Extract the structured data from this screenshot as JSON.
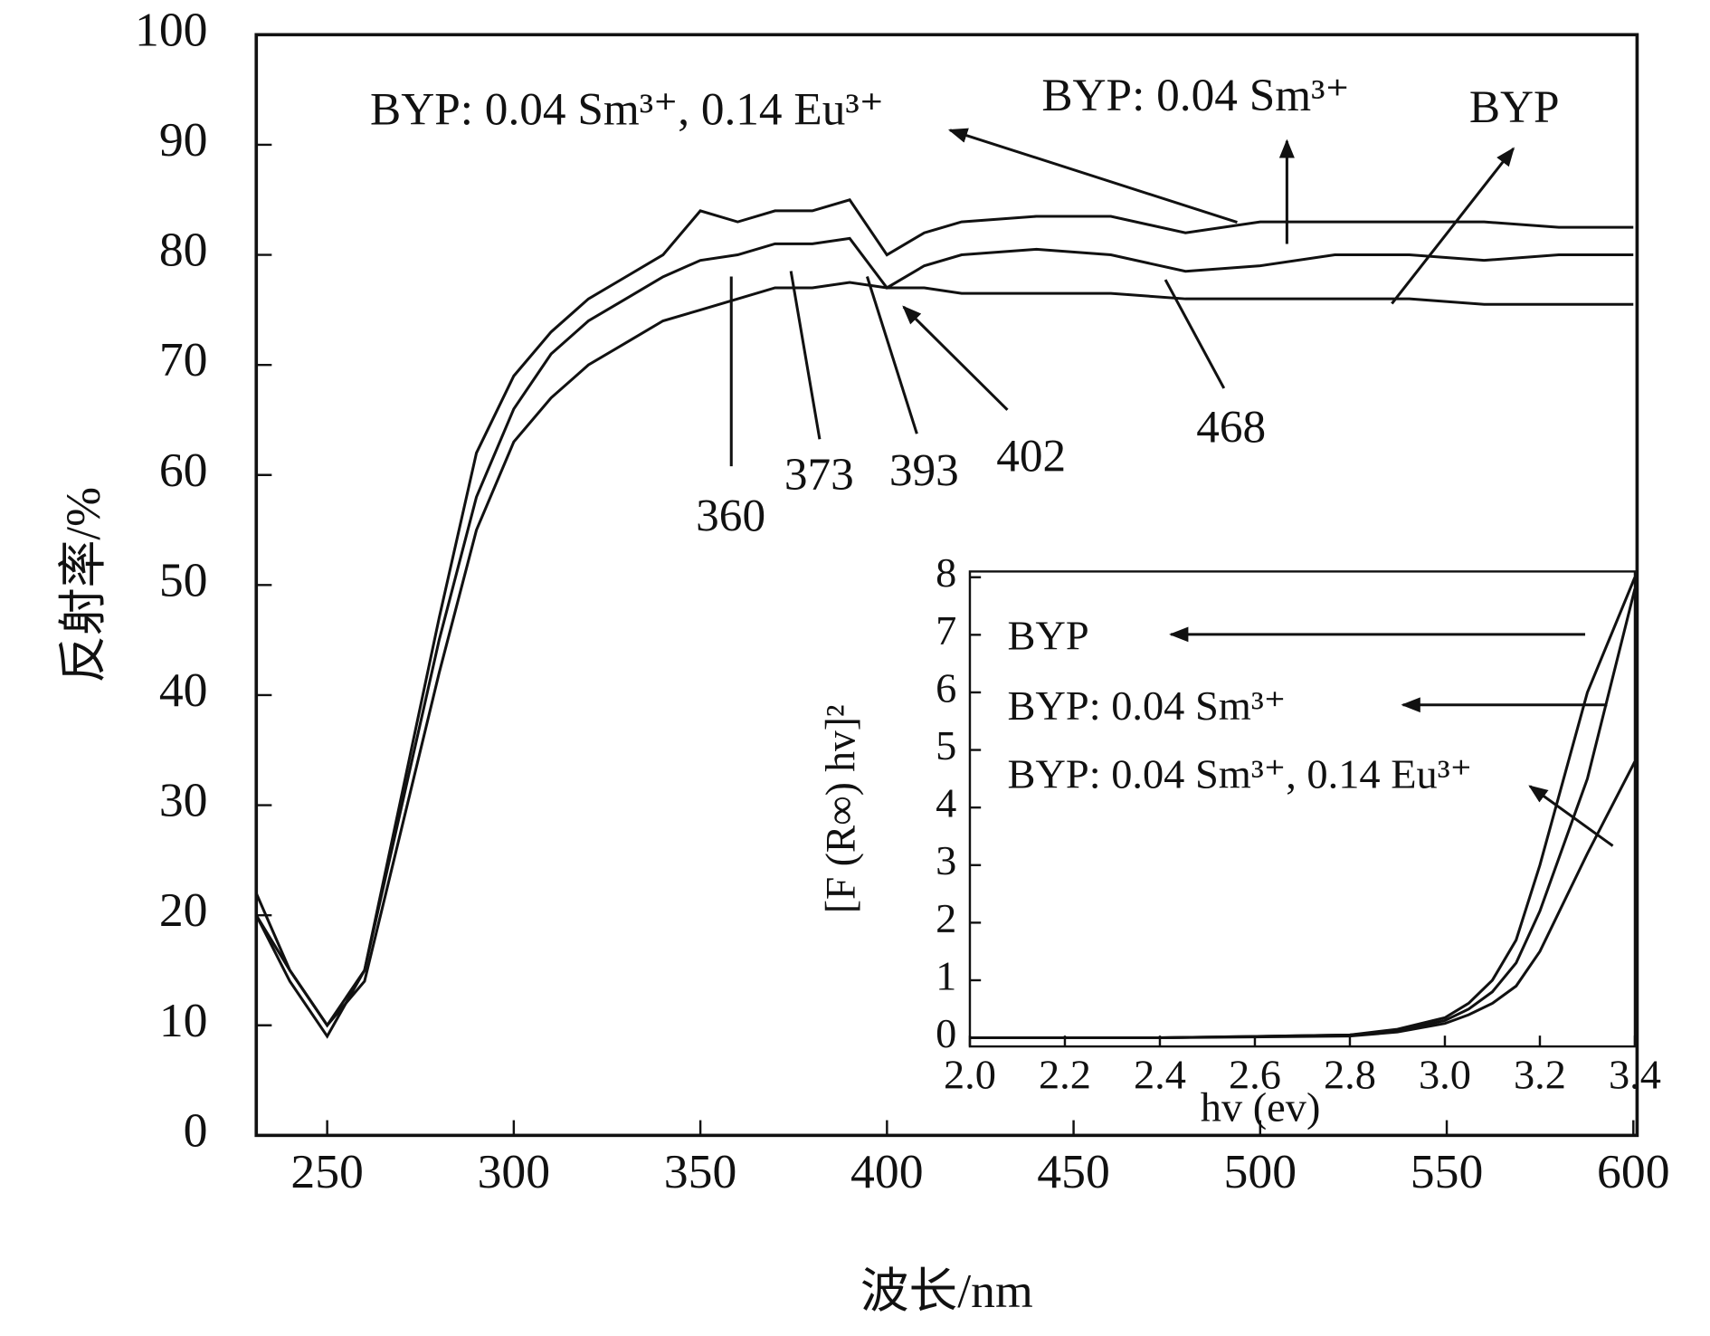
{
  "chart_data": [
    {
      "type": "line",
      "x_label": "波长/nm",
      "y_label": "反射率/%",
      "x": [
        231,
        240,
        250,
        260,
        270,
        280,
        290,
        300,
        310,
        320,
        330,
        340,
        350,
        360,
        370,
        380,
        390,
        400,
        410,
        420,
        440,
        460,
        480,
        500,
        520,
        540,
        560,
        580,
        600
      ],
      "series": [
        {
          "name": "BYP",
          "color": "#111111",
          "values": [
            22,
            15,
            10,
            14,
            28,
            42,
            55,
            63,
            67,
            70,
            72,
            74,
            75,
            76,
            77,
            77,
            77.5,
            77,
            77,
            76.5,
            76.5,
            76.5,
            76,
            76,
            76,
            76,
            75.5,
            75.5,
            75.5
          ]
        },
        {
          "name": "BYP: 0.04 Sm³⁺",
          "color": "#111111",
          "values": [
            20,
            15,
            10,
            15,
            30,
            45,
            58,
            66,
            71,
            74,
            76,
            78,
            79.5,
            80,
            81,
            81,
            81.5,
            77,
            79,
            80,
            80.5,
            80,
            78.5,
            79,
            80,
            80,
            79.5,
            80,
            80
          ]
        },
        {
          "name": "BYP: 0.04 Sm³⁺, 0.14 Eu³⁺",
          "color": "#111111",
          "values": [
            20,
            14,
            9,
            15,
            31,
            47,
            62,
            69,
            73,
            76,
            78,
            80,
            84,
            83,
            84,
            84,
            85,
            80,
            82,
            83,
            83.5,
            83.5,
            82,
            83,
            83,
            83,
            83,
            82.5,
            82.5
          ]
        }
      ],
      "annotations": [
        "360",
        "373",
        "393",
        "402",
        "468"
      ],
      "xlim": [
        231,
        601
      ],
      "ylim": [
        0,
        100
      ],
      "xticks": [
        250,
        300,
        350,
        400,
        450,
        500,
        550,
        600
      ],
      "yticks": [
        0,
        10,
        20,
        30,
        40,
        50,
        60,
        70,
        80,
        90,
        100
      ]
    },
    {
      "type": "line",
      "x_label": "hv (ev)",
      "y_label": "[F (R∞) hv]²",
      "x": [
        2.0,
        2.4,
        2.8,
        2.9,
        3.0,
        3.05,
        3.1,
        3.15,
        3.2,
        3.3,
        3.4
      ],
      "series": [
        {
          "name": "BYP",
          "color": "#111111",
          "values": [
            0,
            0,
            0.05,
            0.15,
            0.35,
            0.6,
            1.0,
            1.7,
            3.0,
            6.0,
            8.0
          ]
        },
        {
          "name": "BYP: 0.04 Sm³⁺",
          "color": "#111111",
          "values": [
            0,
            0,
            0.05,
            0.12,
            0.3,
            0.5,
            0.8,
            1.3,
            2.2,
            4.5,
            7.8
          ]
        },
        {
          "name": "BYP: 0.04 Sm³⁺, 0.14 Eu³⁺",
          "color": "#111111",
          "values": [
            0,
            0,
            0.03,
            0.1,
            0.25,
            0.4,
            0.6,
            0.9,
            1.5,
            3.2,
            4.8
          ]
        }
      ],
      "xlim": [
        2.0,
        3.4
      ],
      "ylim": [
        -0.15,
        8.1
      ],
      "xticks": [
        {
          "value": 2,
          "label": "2.0"
        },
        2.2,
        2.4,
        2.6,
        2.8,
        {
          "value": 3,
          "label": "3.0"
        },
        3.2,
        3.4
      ],
      "yticks": [
        0,
        1,
        2,
        3,
        4,
        5,
        6,
        7,
        8
      ]
    }
  ]
}
